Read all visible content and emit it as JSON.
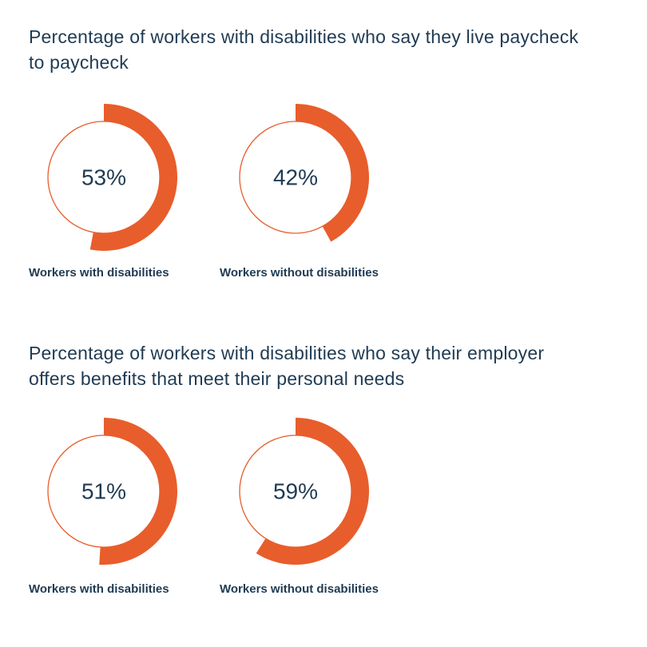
{
  "colors": {
    "accent": "#e85d2c",
    "text": "#1f3b53",
    "background": "#ffffff"
  },
  "chart_data": [
    {
      "type": "pie",
      "title": "Percentage of workers with disabilities who say they live paycheck to paycheck",
      "categories": [
        "Workers with disabilities",
        "Workers without disabilities"
      ],
      "values": [
        53,
        42
      ],
      "value_labels": [
        "53%",
        "42%"
      ]
    },
    {
      "type": "pie",
      "title": "Percentage of workers with disabilities who say their employer offers benefits that meet their personal needs",
      "categories": [
        "Workers with disabilities",
        "Workers without disabilities"
      ],
      "values": [
        51,
        59
      ],
      "value_labels": [
        "51%",
        "59%"
      ]
    }
  ]
}
